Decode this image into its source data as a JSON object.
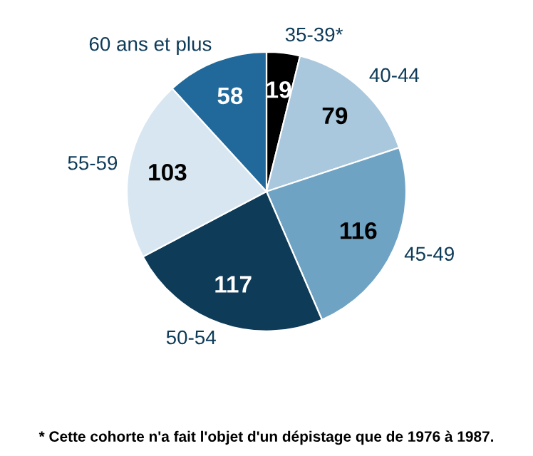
{
  "chart_data": {
    "type": "pie",
    "categories": [
      "35-39*",
      "40-44",
      "45-49",
      "50-54",
      "55-59",
      "60 ans et plus"
    ],
    "values": [
      19,
      79,
      116,
      117,
      103,
      58
    ],
    "colors": [
      "#000000",
      "#a9c7dd",
      "#6fa3c3",
      "#0e3b58",
      "#d7e6f1",
      "#20699a"
    ],
    "data_labels": true,
    "annotations": [
      "* Cette cohorte n'a fait l'objet d'un dépistage que de 1976 à 1987."
    ]
  }
}
